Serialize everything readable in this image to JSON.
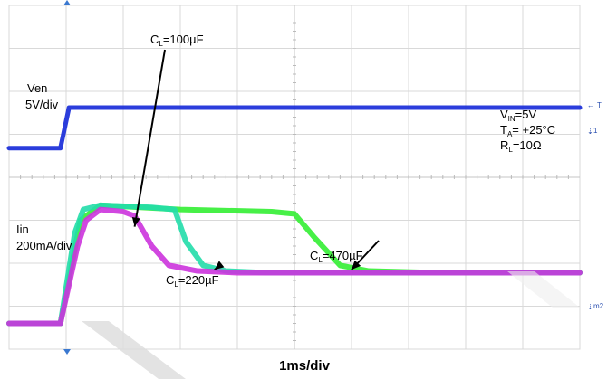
{
  "chart_data": {
    "type": "line",
    "xlabel": "1ms/div",
    "x_divisions": 10,
    "y_divisions": 8,
    "grid": true,
    "channels": {
      "ven": {
        "label": "Ven",
        "scale": "5V/div",
        "color": "#1428d8"
      },
      "iin": {
        "label": "Iin",
        "scale": "200mA/div",
        "color": "#33ee33"
      }
    },
    "series": [
      {
        "name": "Ven",
        "color": "#1428d8",
        "points": [
          [
            0,
            4.68
          ],
          [
            0.9,
            4.68
          ],
          [
            1.05,
            5.62
          ],
          [
            10,
            5.62
          ]
        ]
      },
      {
        "name": "CL=100µF",
        "color": "#cc33dd",
        "points": [
          [
            0,
            0.6
          ],
          [
            0.9,
            0.6
          ],
          [
            1.2,
            2.4
          ],
          [
            1.35,
            3.0
          ],
          [
            1.6,
            3.25
          ],
          [
            2.0,
            3.2
          ],
          [
            2.2,
            3.1
          ],
          [
            2.5,
            2.4
          ],
          [
            2.8,
            1.95
          ],
          [
            3.3,
            1.82
          ],
          [
            4.0,
            1.78
          ],
          [
            10,
            1.78
          ]
        ]
      },
      {
        "name": "CL=220µF",
        "color": "#22ddaa",
        "points": [
          [
            0,
            0.6
          ],
          [
            0.9,
            0.6
          ],
          [
            1.15,
            2.7
          ],
          [
            1.3,
            3.25
          ],
          [
            1.6,
            3.35
          ],
          [
            2.5,
            3.3
          ],
          [
            2.9,
            3.25
          ],
          [
            3.1,
            2.5
          ],
          [
            3.4,
            1.95
          ],
          [
            3.8,
            1.82
          ],
          [
            4.5,
            1.78
          ],
          [
            10,
            1.78
          ]
        ]
      },
      {
        "name": "CL=470µF",
        "color": "#33ee33",
        "points": [
          [
            0,
            0.6
          ],
          [
            0.9,
            0.6
          ],
          [
            1.25,
            3.0
          ],
          [
            1.6,
            3.35
          ],
          [
            3.0,
            3.25
          ],
          [
            4.6,
            3.2
          ],
          [
            5.0,
            3.15
          ],
          [
            5.35,
            2.6
          ],
          [
            5.8,
            1.95
          ],
          [
            6.3,
            1.82
          ],
          [
            7.5,
            1.78
          ],
          [
            10,
            1.78
          ]
        ]
      }
    ],
    "annotations": [
      {
        "text_main": "C",
        "text_sub": "L",
        "text_rest": "=100µF",
        "arrow_to": [
          2.2,
          2.85
        ]
      },
      {
        "text_main": "C",
        "text_sub": "L",
        "text_rest": "=220µF",
        "arrow_to": [
          3.6,
          1.85
        ]
      },
      {
        "text_main": "C",
        "text_sub": "L",
        "text_rest": "=470µF",
        "arrow_to": [
          6.0,
          1.85
        ]
      }
    ],
    "conditions": [
      {
        "main": "V",
        "sub": "IN",
        "rest": "=5V"
      },
      {
        "main": "T",
        "sub": "A",
        "rest": "= +25°C"
      },
      {
        "main": "R",
        "sub": "L",
        "rest": "=10Ω"
      }
    ],
    "markers": {
      "trigger": "T",
      "ch1": "1",
      "math": "m2"
    }
  }
}
